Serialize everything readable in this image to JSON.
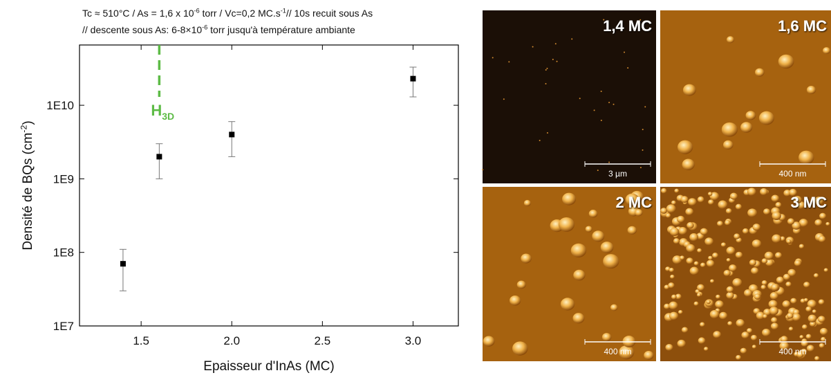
{
  "chart_data": {
    "type": "scatter",
    "title": [
      [
        {
          "text": "Tc ≈ 510°C / As = 1,6 x 10"
        },
        {
          "text": "-6",
          "sup": true
        },
        {
          "text": " torr / Vc=0,2 MC.s"
        },
        {
          "text": "-1",
          "sup": true
        },
        {
          "text": "// 10s recuit sous As"
        }
      ],
      [
        {
          "text": "// descente sous As: 6-8×10"
        },
        {
          "text": "-6",
          "sup": true
        },
        {
          "text": " torr  jusqu'à température ambiante"
        }
      ]
    ],
    "xlabel": "Epaisseur d'InAs (MC)",
    "ylabel": [
      {
        "text": "Densité de BQs (cm"
      },
      {
        "text": "-2",
        "sup": true
      },
      {
        "text": ")"
      }
    ],
    "x": [
      1.4,
      1.6,
      2.0,
      3.0
    ],
    "series": [
      {
        "color": "#000000",
        "values": [
          70000000,
          2000000000,
          4000000000,
          23000000000
        ],
        "yerr": [
          40000000,
          1000000000,
          2000000000,
          10000000000
        ],
        "err_color": "#777777"
      }
    ],
    "xlim": [
      1.16,
      3.25
    ],
    "xticks": [
      1.5,
      {
        "value": 2,
        "label": "2.0"
      },
      2.5,
      {
        "value": 3,
        "label": "3.0"
      }
    ],
    "ylim": [
      10000000,
      66000000000
    ],
    "yscale": "log",
    "yticks": [
      {
        "value": 10000000,
        "label": "1E7"
      },
      {
        "value": 100000000,
        "label": "1E8"
      },
      {
        "value": 1000000000,
        "label": "1E9"
      },
      {
        "value": 10000000000,
        "label": "1E10"
      }
    ],
    "annotation": {
      "text": "H",
      "sub": "3D",
      "x": 1.6,
      "color": "#5dbb46"
    }
  },
  "panels": [
    {
      "label": "1,4 MC",
      "scale": "3 µm"
    },
    {
      "label": "1,6 MC",
      "scale": "400 nm"
    },
    {
      "label": "2 MC",
      "scale": "400 nm"
    },
    {
      "label": "3 MC",
      "scale": "400 nm"
    }
  ]
}
